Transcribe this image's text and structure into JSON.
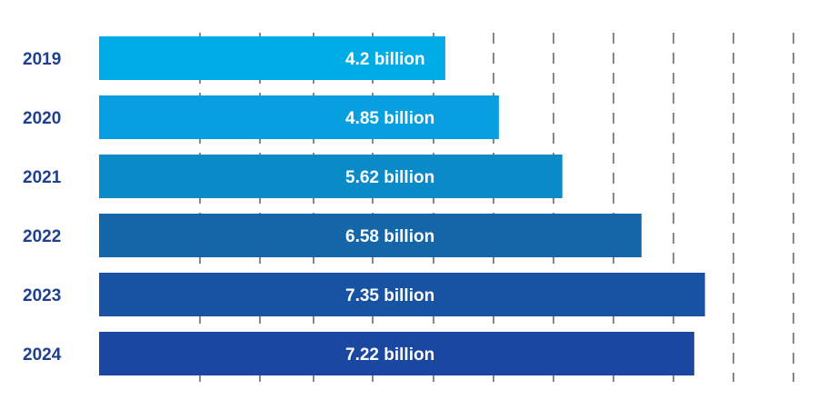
{
  "chart_data": {
    "type": "bar",
    "orientation": "horizontal",
    "categories": [
      "2019",
      "2020",
      "2021",
      "2022",
      "2023",
      "2024"
    ],
    "values": [
      4.2,
      4.85,
      5.62,
      6.58,
      7.35,
      7.22
    ],
    "value_labels": [
      "4.2 billion",
      "4.85 billion",
      "5.62 billion",
      "6.58 billion",
      "7.35 billion",
      "7.22 billion"
    ],
    "bar_colors": [
      "#00ace6",
      "#079fe0",
      "#0b8ac8",
      "#1466a8",
      "#1852a2",
      "#1a47a0"
    ],
    "category_label_color": "#1f3f8f",
    "value_label_color": "#ffffff",
    "xlim": [
      0,
      10
    ],
    "grid": true,
    "title": "",
    "xlabel": "",
    "ylabel": ""
  }
}
